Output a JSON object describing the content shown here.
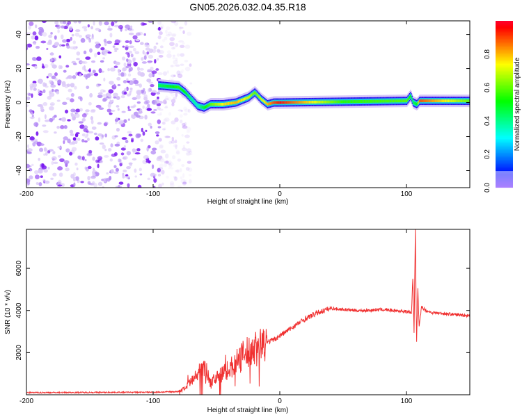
{
  "chart_data": [
    {
      "type": "heatmap",
      "title": "GN05.2026.032.04.35.R18",
      "xlabel": "Height of straight line (km)",
      "ylabel": "Frequency (Hz)",
      "xlim": [
        -200,
        150
      ],
      "ylim": [
        -50,
        48
      ],
      "xticks": [
        -200,
        -100,
        0,
        100
      ],
      "yticks": [
        -40,
        -20,
        0,
        20,
        40
      ],
      "colorbar": {
        "label": "Normalized spectral amplitude",
        "range": [
          0,
          1
        ],
        "ticks": [
          "0.0",
          "0.2",
          "0.4",
          "0.6",
          "0.8"
        ]
      },
      "noise_region_km": [
        -200,
        -80
      ],
      "ridge": {
        "x": [
          -95,
          -80,
          -75,
          -70,
          -65,
          -60,
          -55,
          -45,
          -35,
          -25,
          -20,
          -15,
          -10,
          -5,
          0,
          50,
          100,
          103,
          105,
          108,
          110,
          150
        ],
        "freq": [
          10,
          9,
          6,
          2,
          -2,
          -3,
          -1,
          -1,
          0,
          3,
          6,
          2,
          -1,
          0,
          0,
          0.5,
          1,
          4,
          0,
          -1,
          1,
          1
        ],
        "amplitude": [
          0.45,
          0.55,
          0.5,
          0.4,
          0.35,
          0.5,
          0.6,
          0.75,
          0.8,
          0.7,
          0.6,
          0.7,
          0.8,
          0.9,
          0.95,
          0.55,
          0.6,
          0.5,
          0.45,
          0.5,
          0.9,
          0.6
        ]
      }
    },
    {
      "type": "line",
      "xlabel": "Height of straight line (km)",
      "ylabel": "SNR (10 * v/v)",
      "xlim": [
        -200,
        150
      ],
      "ylim": [
        0,
        7850
      ],
      "xticks": [
        -200,
        -100,
        0,
        100
      ],
      "yticks": [
        2000,
        4000,
        6000
      ],
      "series": [
        {
          "name": "SNR",
          "color": "#f03030",
          "x": [
            -200,
            -150,
            -100,
            -80,
            -75,
            -70,
            -65,
            -60,
            -55,
            -50,
            -45,
            -40,
            -35,
            -30,
            -25,
            -20,
            -15,
            -10,
            -5,
            0,
            10,
            20,
            30,
            40,
            50,
            60,
            70,
            80,
            90,
            100,
            104,
            105,
            106,
            107,
            108,
            109,
            110,
            112,
            115,
            120,
            130,
            140,
            150
          ],
          "y": [
            100,
            110,
            120,
            150,
            300,
            600,
            900,
            1500,
            600,
            800,
            1000,
            1200,
            1500,
            1800,
            2000,
            2200,
            2300,
            2500,
            2600,
            2800,
            3200,
            3600,
            3900,
            4100,
            4050,
            4000,
            4000,
            4050,
            4000,
            3950,
            3900,
            5500,
            3000,
            7850,
            2500,
            5000,
            3200,
            4200,
            4000,
            3900,
            3850,
            3800,
            3750
          ]
        }
      ]
    }
  ],
  "colors": {
    "axis": "#000000",
    "line": "#f03030",
    "noise": "#7a1cf0"
  }
}
